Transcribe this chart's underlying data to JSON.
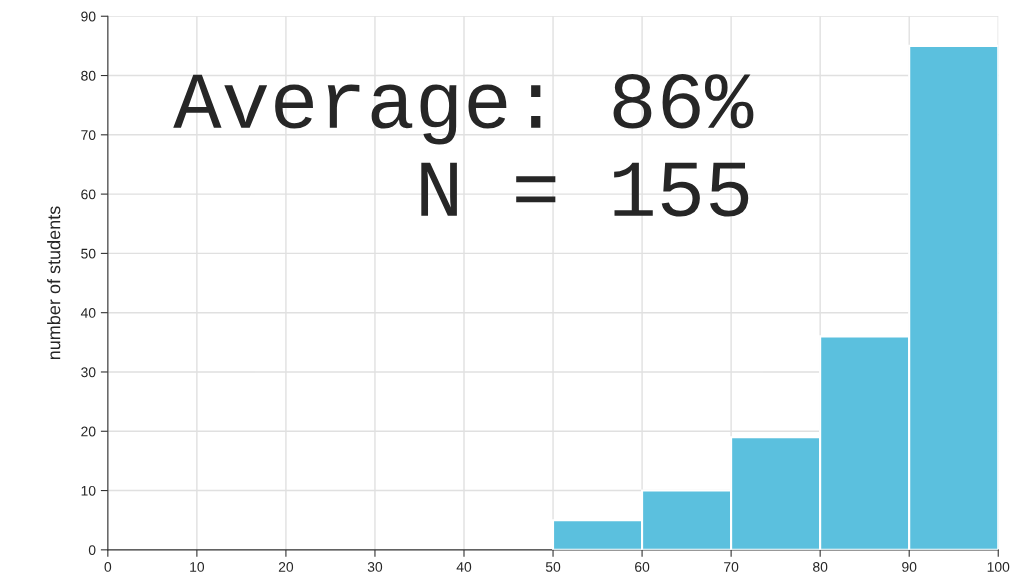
{
  "chart_data": {
    "type": "histogram",
    "ylabel": "number of students",
    "bins": [
      50,
      60,
      70,
      80,
      90,
      100
    ],
    "values": [
      5,
      10,
      19,
      36,
      85
    ],
    "color": "#5bc0de",
    "xlim": [
      0,
      100
    ],
    "xticks": [
      0,
      10,
      20,
      30,
      40,
      50,
      60,
      70,
      80,
      90,
      100
    ],
    "ylim": [
      0,
      90
    ],
    "yticks": [
      0,
      10,
      20,
      30,
      40,
      50,
      60,
      70,
      80,
      90
    ],
    "grid": true,
    "annotations": [
      "Average: 86%",
      "N = 155"
    ]
  }
}
